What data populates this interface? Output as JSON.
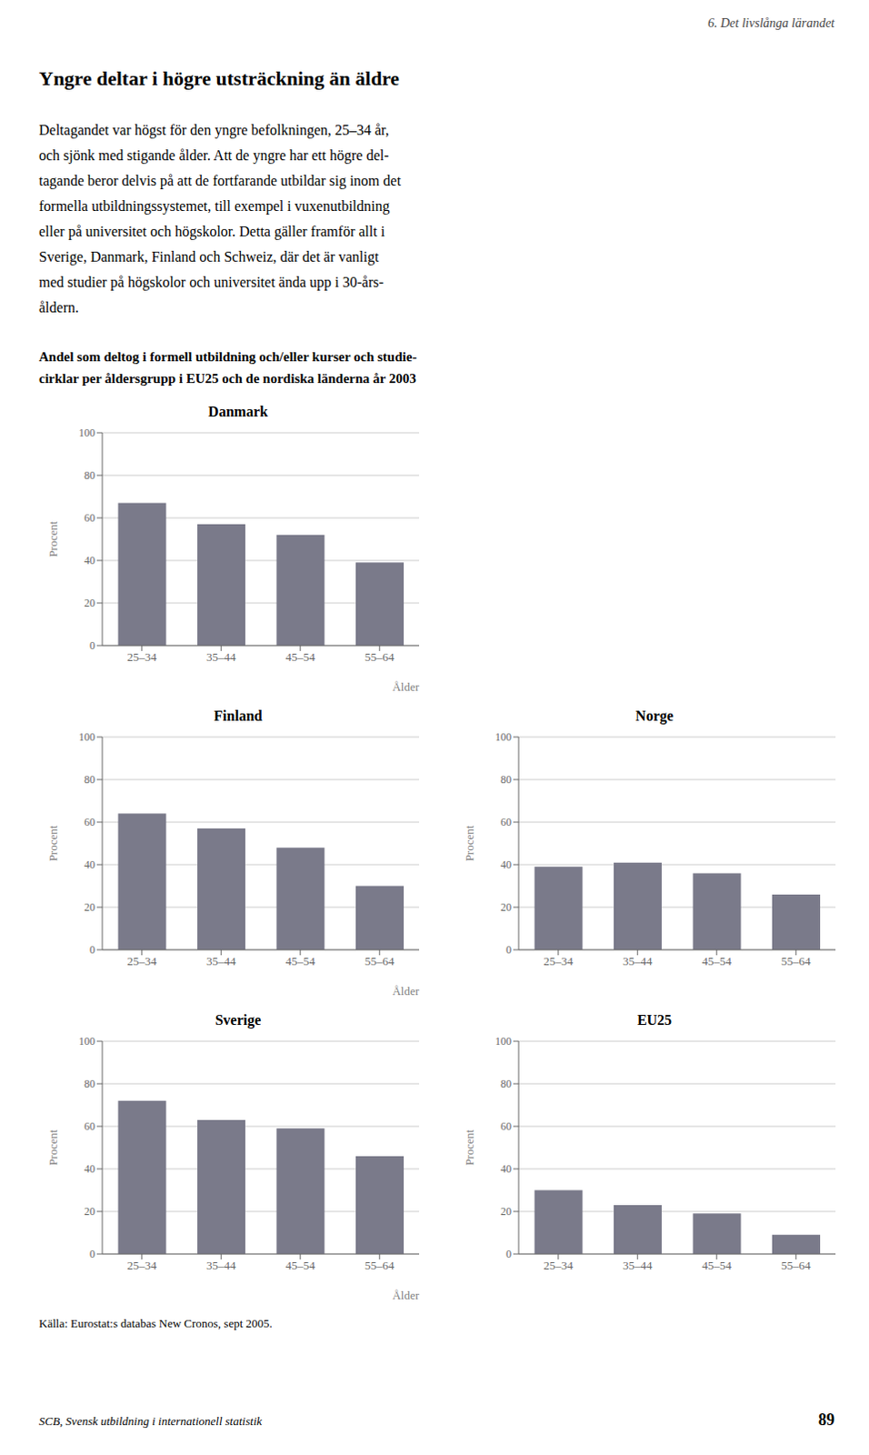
{
  "title": "Yngre deltar i högre utsträckning än äldre",
  "subtitle": [
    "Andel som deltog i formell utbildning och/eller kurser och studie-",
    "cirklar per åldersgrupp i EU25 och de nordiska länderna år 2003"
  ],
  "annotations": [
    "6. Det livslånga lärandet",
    "Deltagandet var högst för den yngre befolkningen, 25–34 år,",
    "och sjönk med stigande ålder. Att de yngre har ett högre del-",
    "tagande beror delvis på att de fortfarande utbildar sig inom det",
    "formella utbildningssystemet, till exempel i vuxenutbildning",
    "eller på universitet och högskolor. Detta gäller framför allt i",
    "Sverige, Danmark, Finland och Schweiz, där det är vanligt",
    "med studier på högskolor och universitet ända upp i 30-års-",
    "åldern.",
    "Källa: Eurostat:s databas New Cronos, sept 2005.",
    "SCB, Svensk utbildning i internationell statistik",
    "89"
  ],
  "chart_data": [
    {
      "type": "bar",
      "title": "Danmark",
      "categories": [
        "25–34",
        "35–44",
        "45–54",
        "55–64"
      ],
      "values": [
        67,
        57,
        52,
        39
      ],
      "color": "#7a7a8a",
      "ylim": [
        0,
        100
      ],
      "yticks": [
        0,
        20,
        40,
        60,
        80,
        100
      ],
      "grid": true,
      "ylabel": "Procent",
      "xlabel": "Ålder"
    },
    {
      "type": "bar",
      "title": "Finland",
      "categories": [
        "25–34",
        "35–44",
        "45–54",
        "55–64"
      ],
      "values": [
        64,
        57,
        48,
        30
      ],
      "color": "#7a7a8a",
      "ylim": [
        0,
        100
      ],
      "yticks": [
        0,
        20,
        40,
        60,
        80,
        100
      ],
      "grid": true,
      "ylabel": "Procent",
      "xlabel": "Ålder"
    },
    {
      "type": "bar",
      "title": "Norge",
      "categories": [
        "25–34",
        "35–44",
        "45–54",
        "55–64"
      ],
      "values": [
        39,
        41,
        36,
        26
      ],
      "color": "#7a7a8a",
      "ylim": [
        0,
        100
      ],
      "yticks": [
        0,
        20,
        40,
        60,
        80,
        100
      ],
      "grid": true,
      "ylabel": "Procent"
    },
    {
      "type": "bar",
      "title": "Sverige",
      "categories": [
        "25–34",
        "35–44",
        "45–54",
        "55–64"
      ],
      "values": [
        72,
        63,
        59,
        46
      ],
      "color": "#7a7a8a",
      "ylim": [
        0,
        100
      ],
      "yticks": [
        0,
        20,
        40,
        60,
        80,
        100
      ],
      "grid": true,
      "ylabel": "Procent",
      "xlabel": "Ålder"
    },
    {
      "type": "bar",
      "title": "EU25",
      "categories": [
        "25–34",
        "35–44",
        "45–54",
        "55–64"
      ],
      "values": [
        30,
        23,
        19,
        9
      ],
      "color": "#7a7a8a",
      "ylim": [
        0,
        100
      ],
      "yticks": [
        0,
        20,
        40,
        60,
        80,
        100
      ],
      "grid": true,
      "ylabel": "Procent"
    }
  ]
}
